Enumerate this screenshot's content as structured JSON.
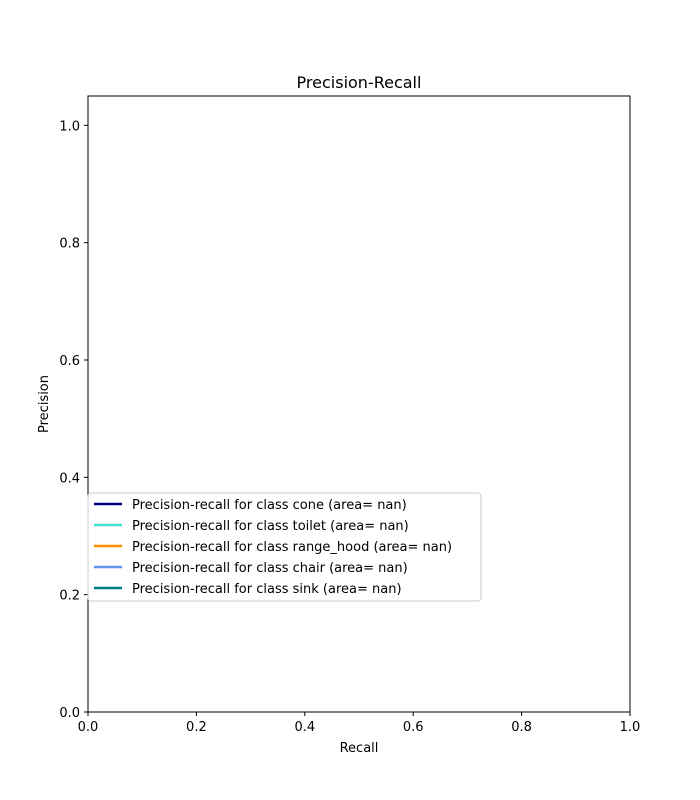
{
  "chart_data": {
    "type": "line",
    "title": "Precision-Recall",
    "xlabel": "Recall",
    "ylabel": "Precision",
    "xlim": [
      0.0,
      1.0
    ],
    "ylim": [
      0.0,
      1.05
    ],
    "xticks": [
      "0.0",
      "0.2",
      "0.4",
      "0.6",
      "0.8",
      "1.0"
    ],
    "yticks": [
      "0.0",
      "0.2",
      "0.4",
      "0.6",
      "0.8",
      "1.0"
    ],
    "grid": false,
    "legend_position": "lower-left",
    "series": [
      {
        "name": "Precision-recall for class cone (area= nan)",
        "color": "#000080",
        "x": [],
        "y": []
      },
      {
        "name": "Precision-recall for class toilet (area= nan)",
        "color": "#40e0d0",
        "x": [],
        "y": []
      },
      {
        "name": "Precision-recall for class range_hood (area= nan)",
        "color": "#ff8c00",
        "x": [],
        "y": []
      },
      {
        "name": "Precision-recall for class chair (area= nan)",
        "color": "#6495ed",
        "x": [],
        "y": []
      },
      {
        "name": "Precision-recall for class sink (area= nan)",
        "color": "#008080",
        "x": [],
        "y": []
      }
    ]
  }
}
